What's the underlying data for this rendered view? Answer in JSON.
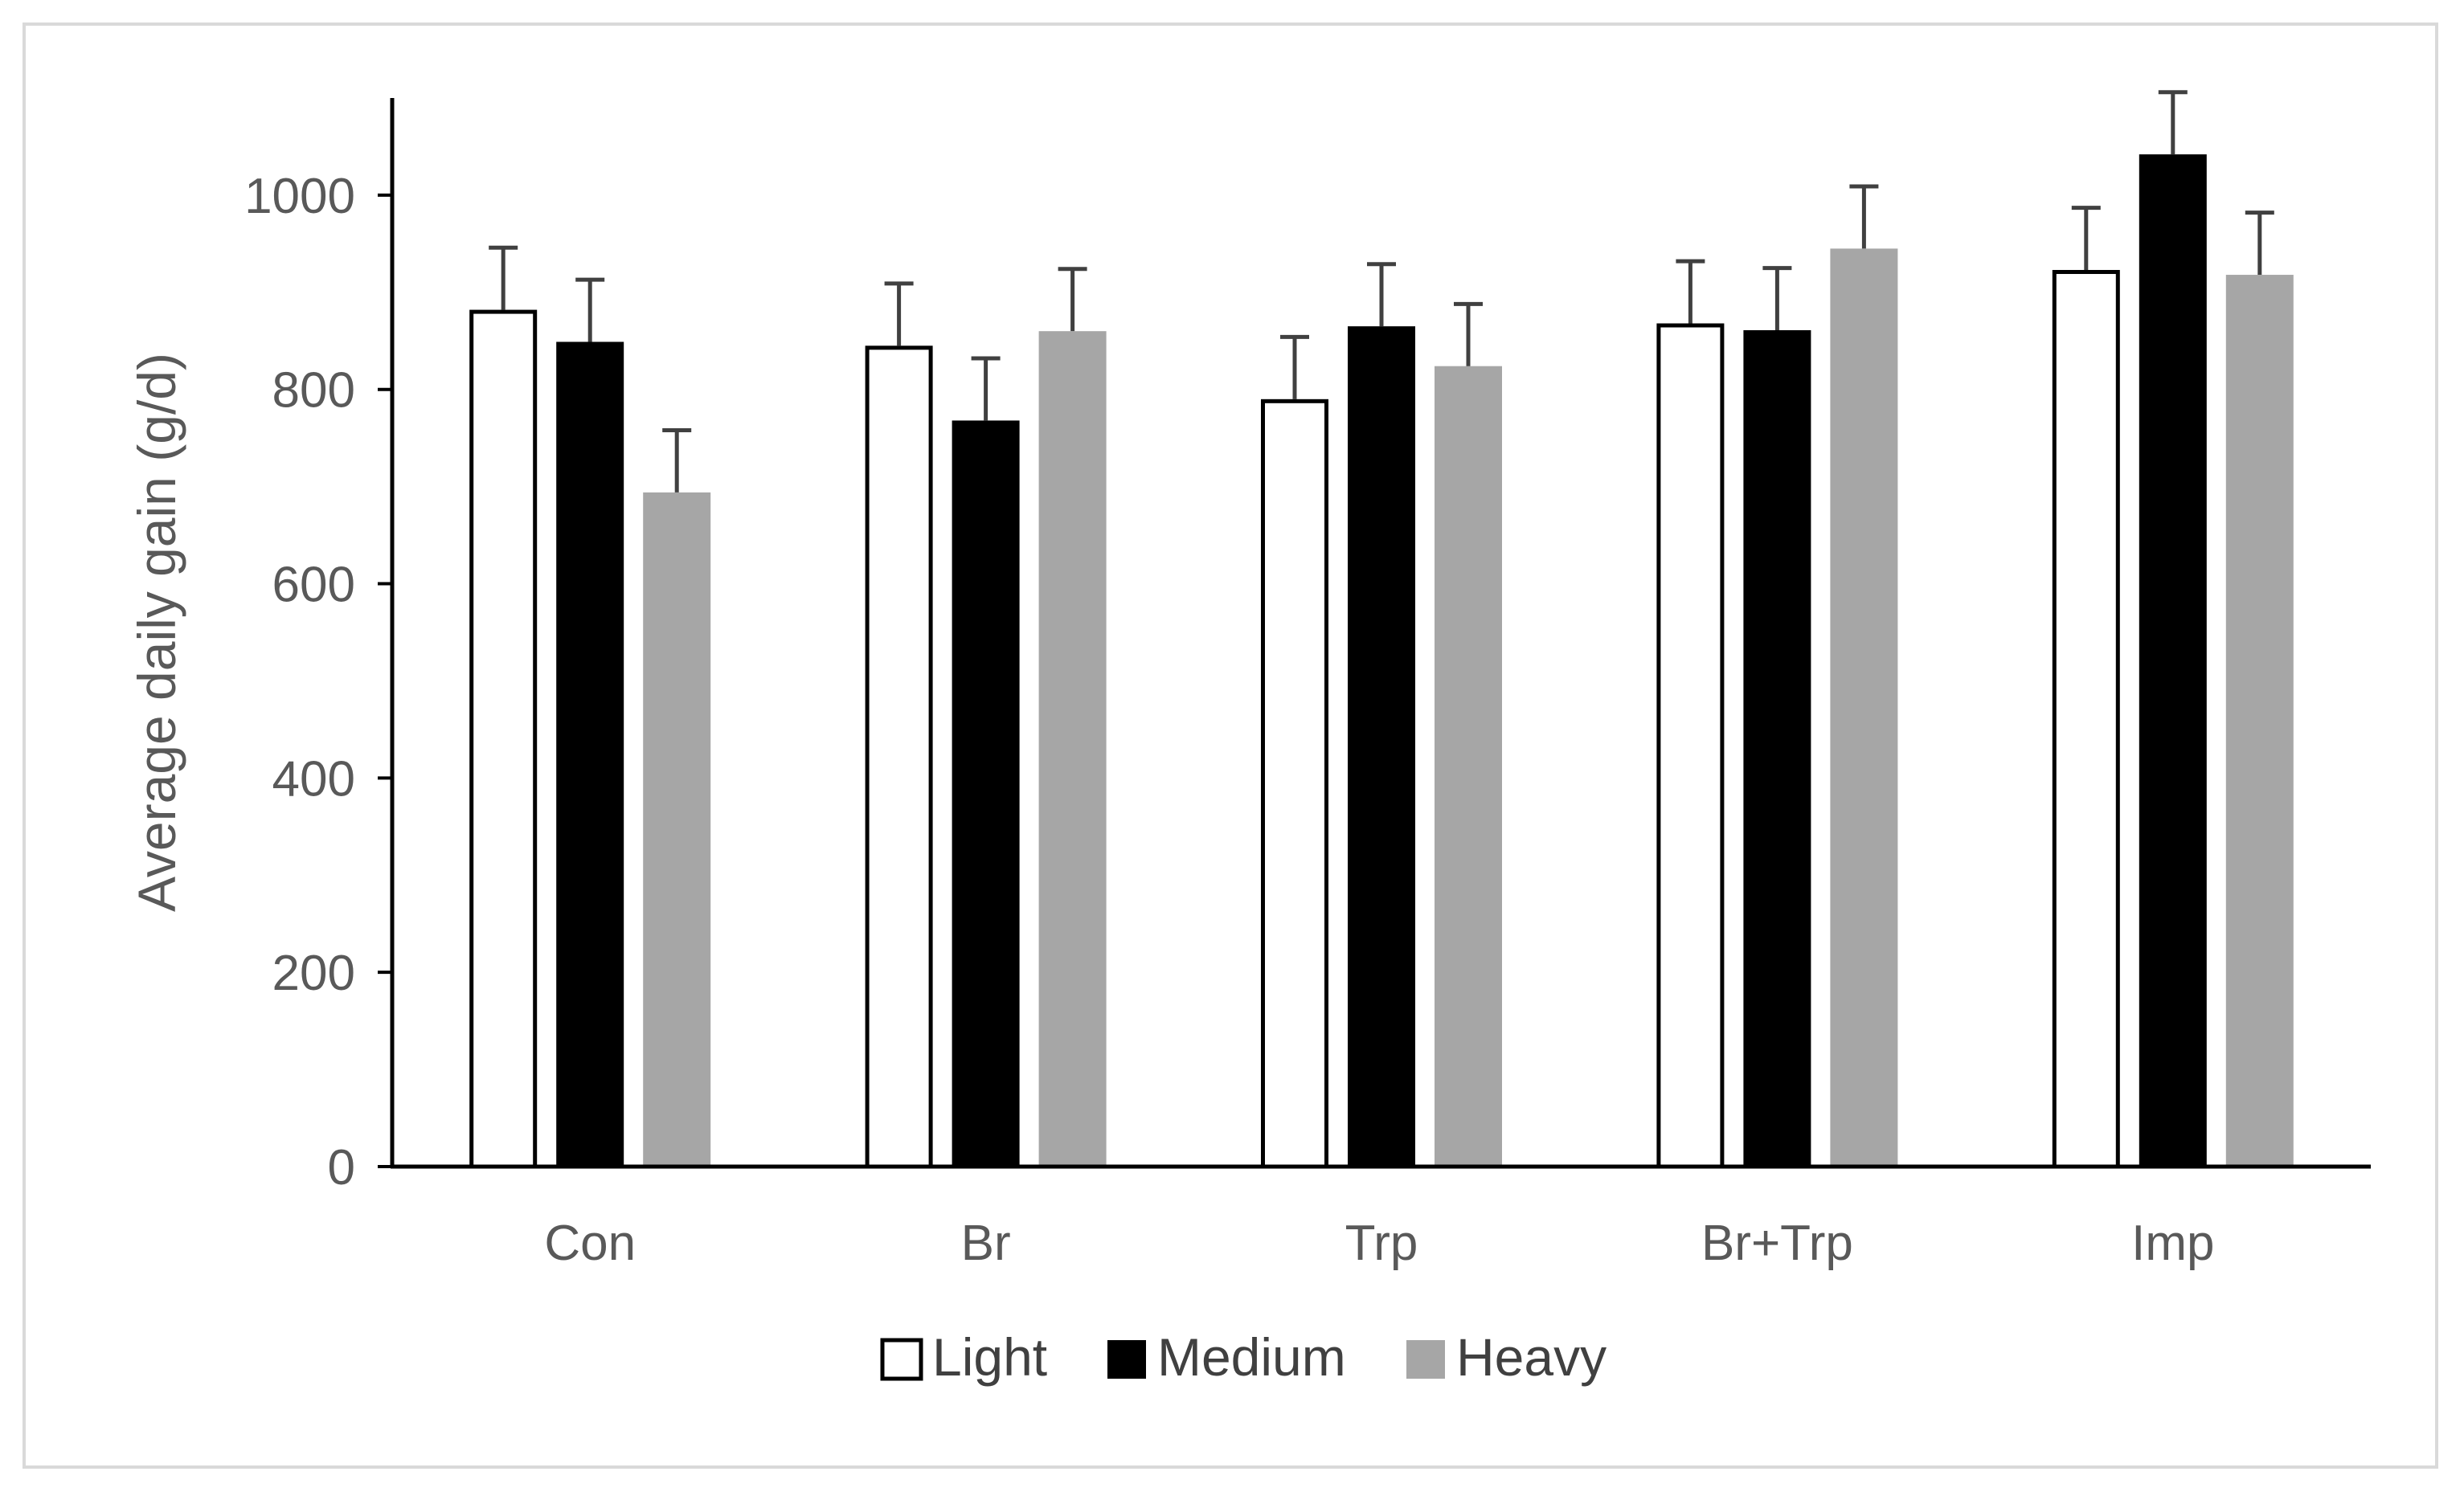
{
  "chart_data": {
    "type": "bar",
    "title": "",
    "xlabel": "",
    "ylabel": "Average daily gain (g/d)",
    "ylim": [
      0,
      1100
    ],
    "yticks": [
      0,
      200,
      400,
      600,
      800,
      1000
    ],
    "categories": [
      "Con",
      "Br",
      "Trp",
      "Br+Trp",
      "Imp"
    ],
    "series": [
      {
        "name": "Light",
        "values": [
          882,
          845,
          790,
          868,
          923
        ],
        "errors": [
          64,
          64,
          64,
          64,
          64
        ],
        "color": "#ffffff",
        "stroke": "#000000"
      },
      {
        "name": "Medium",
        "values": [
          849,
          768,
          865,
          861,
          1042
        ],
        "errors": [
          64,
          64,
          64,
          64,
          64
        ],
        "color": "#000000",
        "stroke": "#000000"
      },
      {
        "name": "Heavy",
        "values": [
          694,
          860,
          824,
          945,
          918
        ],
        "errors": [
          64,
          64,
          64,
          64,
          64
        ],
        "color": "#a6a6a6",
        "stroke": "#a6a6a6"
      }
    ],
    "grid": false,
    "legend_position": "bottom"
  }
}
